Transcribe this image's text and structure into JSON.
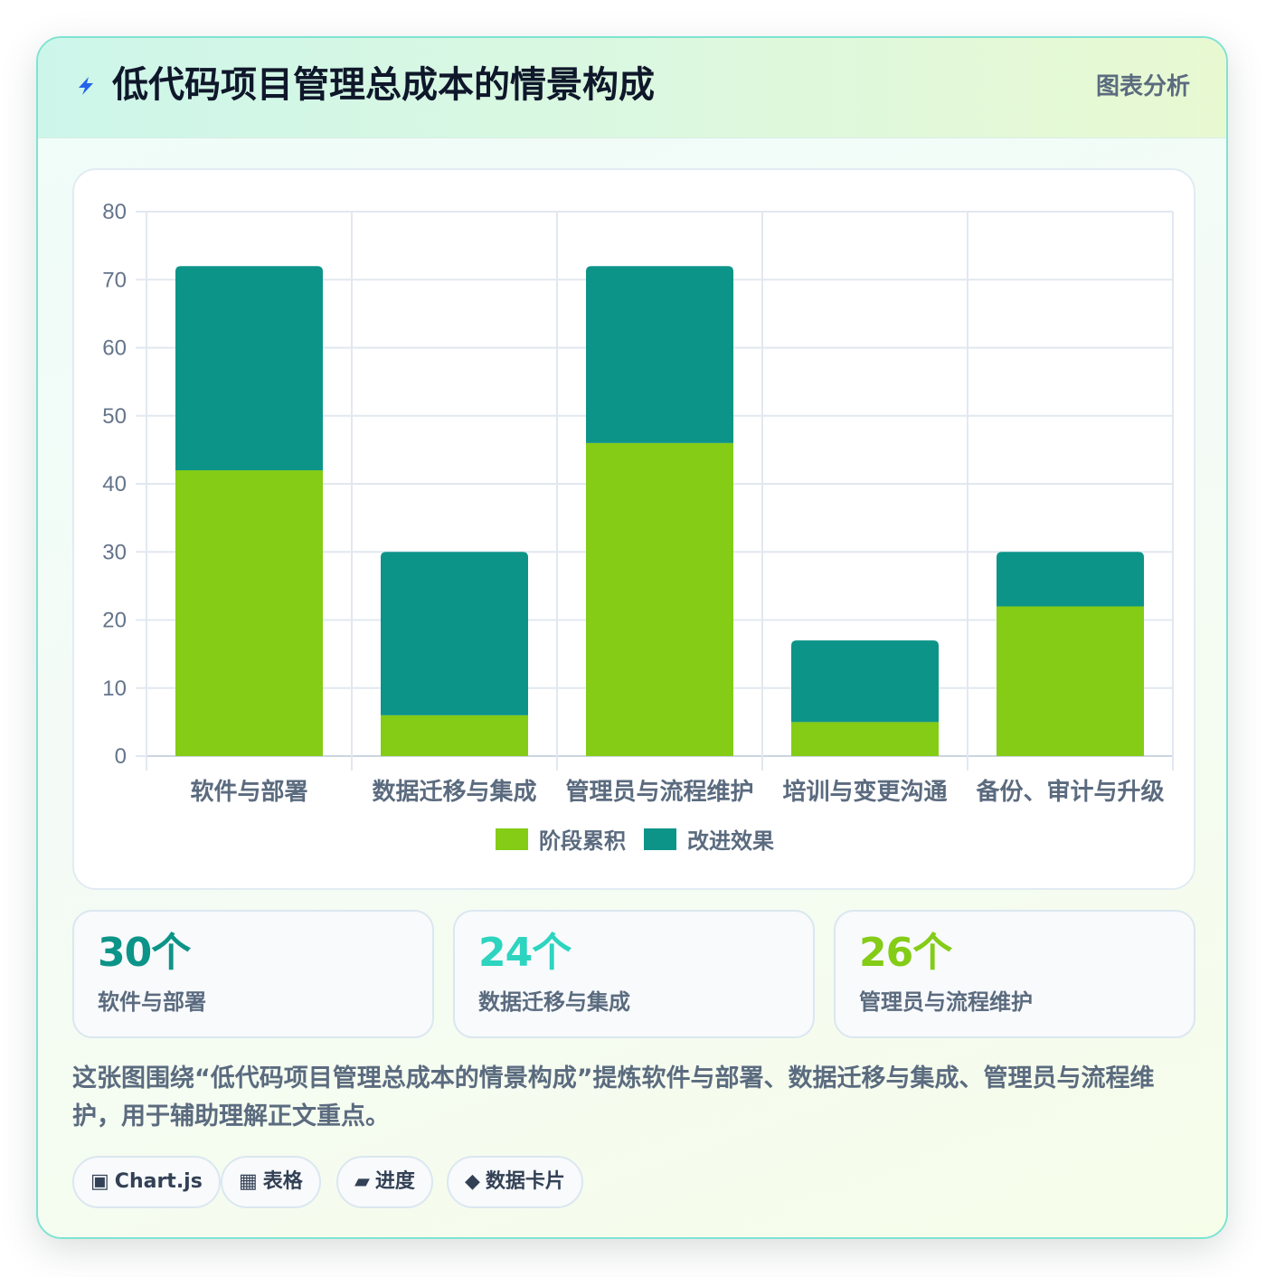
{
  "header": {
    "icon": "lightning-bolt-icon",
    "title": "低代码项目管理总成本的情景构成",
    "tag": "图表分析"
  },
  "chart_data": {
    "type": "bar",
    "stacked": true,
    "categories": [
      "软件与部署",
      "数据迁移与集成",
      "管理员与流程维护",
      "培训与变更沟通",
      "备份、审计与升级"
    ],
    "series": [
      {
        "name": "阶段累积",
        "color": "#84cc16",
        "values": [
          42,
          6,
          46,
          5,
          22
        ]
      },
      {
        "name": "改进效果",
        "color": "#0d9488",
        "values": [
          30,
          24,
          26,
          12,
          8
        ]
      }
    ],
    "ylim": [
      0,
      80
    ],
    "yticks": [
      0,
      10,
      20,
      30,
      40,
      50,
      60,
      70,
      80
    ],
    "grid": true,
    "legend_position": "bottom"
  },
  "stats": [
    {
      "value": "30个",
      "label": "软件与部署",
      "color": "#0d9488"
    },
    {
      "value": "24个",
      "label": "数据迁移与集成",
      "color": "#2dd4bf"
    },
    {
      "value": "26个",
      "label": "管理员与流程维护",
      "color": "#84cc16"
    }
  ],
  "description": "这张图围绕“低代码项目管理总成本的情景构成”提炼软件与部署、数据迁移与集成、管理员与流程维护，用于辅助理解正文重点。",
  "chips": [
    {
      "icon": "▣",
      "label": "Chart.js"
    },
    {
      "icon": "▦",
      "label": "表格"
    },
    {
      "icon": "▰",
      "label": "进度"
    },
    {
      "icon": "◆",
      "label": "数据卡片"
    }
  ]
}
